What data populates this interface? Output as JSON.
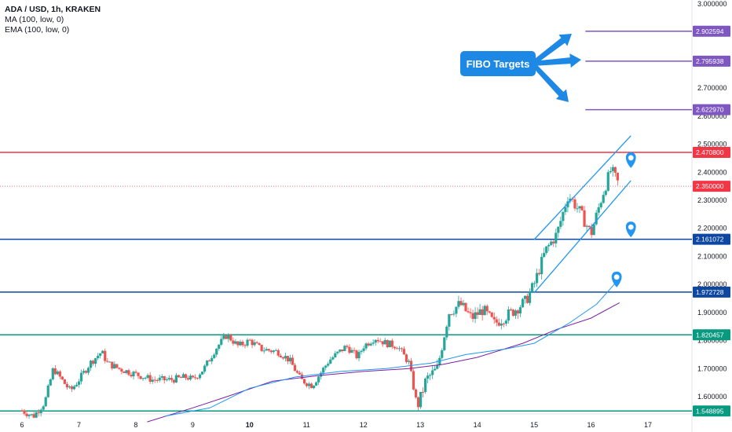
{
  "legend": {
    "symbol": "ADA / USD, 1h, KRAKEN",
    "ma": "MA (100, low, 0)",
    "ema": "EMA (100, low, 0)"
  },
  "callout": {
    "label": "FIBO Targets"
  },
  "colors": {
    "up": "#26a69a",
    "down": "#ef5350",
    "fibo": "#7e57c2",
    "support": "#0d47a1",
    "teal": "#089981",
    "resistance": "#f23645",
    "channel": "#2196f3",
    "ma": "#2196f3",
    "ema": "#7b1fa2",
    "callout": "#1e88e5"
  },
  "chart_data": {
    "type": "candlestick",
    "symbol": "ADA / USD",
    "timeframe": "1h",
    "exchange": "KRAKEN",
    "ylim": [
      1.535,
      3.0
    ],
    "xlim": [
      6.0,
      17.65
    ],
    "y_ticks": [
      1.6,
      1.7,
      1.8,
      1.9,
      2.0,
      2.1,
      2.2,
      2.3,
      2.4,
      2.5,
      2.6,
      2.7,
      2.8,
      2.9,
      3.0
    ],
    "y_tick_labels": [
      "1.600000",
      "1.700000",
      "1.800000",
      "1.900000",
      "2.000000",
      "2.100000",
      "2.200000",
      "2.300000",
      "2.400000",
      "2.500000",
      "2.600000",
      "2.700000",
      "2.800000",
      "2.900000",
      "3.000000"
    ],
    "x_ticks": [
      6,
      7,
      8,
      9,
      10,
      11,
      12,
      13,
      14,
      15,
      16,
      17
    ],
    "x_tick_labels": [
      "6",
      "7",
      "8",
      "9",
      "10",
      "11",
      "12",
      "13",
      "14",
      "15",
      "16",
      "17"
    ],
    "bold_x_tick": "10",
    "price_path": [
      [
        6.0,
        1.55
      ],
      [
        6.2,
        1.53
      ],
      [
        6.4,
        1.58
      ],
      [
        6.55,
        1.7
      ],
      [
        6.7,
        1.66
      ],
      [
        6.85,
        1.62
      ],
      [
        7.0,
        1.66
      ],
      [
        7.2,
        1.72
      ],
      [
        7.4,
        1.76
      ],
      [
        7.5,
        1.72
      ],
      [
        7.7,
        1.7
      ],
      [
        8.0,
        1.68
      ],
      [
        8.3,
        1.66
      ],
      [
        8.6,
        1.66
      ],
      [
        8.9,
        1.67
      ],
      [
        9.0,
        1.66
      ],
      [
        9.2,
        1.7
      ],
      [
        9.4,
        1.77
      ],
      [
        9.6,
        1.82
      ],
      [
        9.8,
        1.78
      ],
      [
        10.0,
        1.8
      ],
      [
        10.2,
        1.77
      ],
      [
        10.5,
        1.76
      ],
      [
        10.7,
        1.73
      ],
      [
        10.9,
        1.66
      ],
      [
        11.1,
        1.64
      ],
      [
        11.4,
        1.73
      ],
      [
        11.7,
        1.78
      ],
      [
        11.9,
        1.74
      ],
      [
        12.0,
        1.78
      ],
      [
        12.2,
        1.81
      ],
      [
        12.4,
        1.79
      ],
      [
        12.6,
        1.78
      ],
      [
        12.8,
        1.72
      ],
      [
        12.95,
        1.56
      ],
      [
        13.1,
        1.66
      ],
      [
        13.3,
        1.7
      ],
      [
        13.5,
        1.9
      ],
      [
        13.7,
        1.93
      ],
      [
        13.9,
        1.88
      ],
      [
        14.1,
        1.91
      ],
      [
        14.3,
        1.86
      ],
      [
        14.6,
        1.9
      ],
      [
        14.85,
        1.94
      ],
      [
        15.0,
        2.0
      ],
      [
        15.2,
        2.12
      ],
      [
        15.4,
        2.18
      ],
      [
        15.6,
        2.32
      ],
      [
        15.8,
        2.26
      ],
      [
        16.0,
        2.18
      ],
      [
        16.2,
        2.32
      ],
      [
        16.35,
        2.41
      ],
      [
        16.5,
        2.35
      ]
    ],
    "ma_path": [
      [
        8.2,
        1.51
      ],
      [
        9.0,
        1.56
      ],
      [
        9.6,
        1.6
      ],
      [
        10.4,
        1.655
      ],
      [
        11.2,
        1.675
      ],
      [
        12.0,
        1.69
      ],
      [
        12.8,
        1.7
      ],
      [
        13.4,
        1.715
      ],
      [
        14.0,
        1.74
      ],
      [
        14.8,
        1.79
      ],
      [
        15.4,
        1.84
      ],
      [
        16.0,
        1.88
      ],
      [
        16.5,
        1.935
      ]
    ],
    "ema_path": [
      [
        8.5,
        1.53
      ],
      [
        9.3,
        1.56
      ],
      [
        10.0,
        1.63
      ],
      [
        10.8,
        1.67
      ],
      [
        11.6,
        1.69
      ],
      [
        12.4,
        1.7
      ],
      [
        13.2,
        1.72
      ],
      [
        13.8,
        1.75
      ],
      [
        14.5,
        1.77
      ],
      [
        15.0,
        1.79
      ],
      [
        15.6,
        1.86
      ],
      [
        16.1,
        1.93
      ],
      [
        16.45,
        2.01
      ]
    ],
    "horizontal_levels": [
      {
        "value": 2.902594,
        "label": "2.902594",
        "role": "fibo"
      },
      {
        "value": 2.795938,
        "label": "2.795938",
        "role": "fibo"
      },
      {
        "value": 2.62297,
        "label": "2.622970",
        "role": "fibo"
      },
      {
        "value": 2.4708,
        "label": "2.470800",
        "role": "resistance"
      },
      {
        "value": 2.35,
        "label": "2.350000",
        "role": "last"
      },
      {
        "value": 2.161072,
        "label": "2.161072",
        "role": "support"
      },
      {
        "value": 1.972728,
        "label": "1.972728",
        "role": "support"
      },
      {
        "value": 1.820457,
        "label": "1.820457",
        "role": "teal"
      },
      {
        "value": 1.548895,
        "label": "1.548895",
        "role": "teal"
      }
    ],
    "fibo_segments_start_x": 15.9,
    "channel": {
      "upper": [
        [
          15.0,
          2.16
        ],
        [
          16.7,
          2.53
        ]
      ],
      "lower": [
        [
          15.0,
          1.97
        ],
        [
          16.7,
          2.37
        ]
      ]
    },
    "markers": [
      [
        16.7,
        2.415
      ],
      [
        16.7,
        2.168
      ],
      [
        16.45,
        1.99
      ]
    ]
  }
}
